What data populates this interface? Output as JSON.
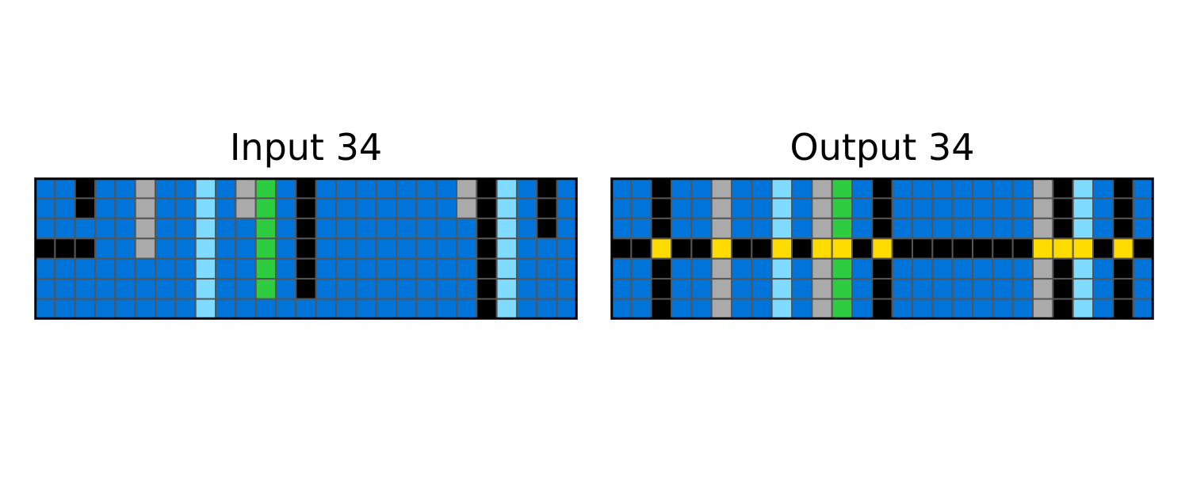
{
  "palette": {
    "0": "#000000",
    "1": "#0074D9",
    "3": "#2ECC40",
    "4": "#FFDC00",
    "5": "#AAAAAA",
    "8": "#7FDBFF"
  },
  "grid_line_color": "#555555",
  "border_color": "#000000",
  "panels": [
    {
      "title": "Input 34",
      "rows": [
        [
          1,
          1,
          0,
          1,
          1,
          5,
          1,
          1,
          8,
          1,
          5,
          3,
          1,
          0,
          1,
          1,
          1,
          1,
          1,
          1,
          1,
          5,
          0,
          8,
          1,
          0,
          1
        ],
        [
          1,
          1,
          0,
          1,
          1,
          5,
          1,
          1,
          8,
          1,
          5,
          3,
          1,
          0,
          1,
          1,
          1,
          1,
          1,
          1,
          1,
          5,
          0,
          8,
          1,
          0,
          1
        ],
        [
          1,
          1,
          1,
          1,
          1,
          5,
          1,
          1,
          8,
          1,
          1,
          3,
          1,
          0,
          1,
          1,
          1,
          1,
          1,
          1,
          1,
          1,
          0,
          8,
          1,
          0,
          1
        ],
        [
          0,
          0,
          0,
          1,
          1,
          5,
          1,
          1,
          8,
          1,
          1,
          3,
          1,
          0,
          1,
          1,
          1,
          1,
          1,
          1,
          1,
          1,
          0,
          8,
          1,
          1,
          1
        ],
        [
          1,
          1,
          1,
          1,
          1,
          1,
          1,
          1,
          8,
          1,
          1,
          3,
          1,
          0,
          1,
          1,
          1,
          1,
          1,
          1,
          1,
          1,
          0,
          8,
          1,
          1,
          1
        ],
        [
          1,
          1,
          1,
          1,
          1,
          1,
          1,
          1,
          8,
          1,
          1,
          3,
          1,
          0,
          1,
          1,
          1,
          1,
          1,
          1,
          1,
          1,
          0,
          8,
          1,
          1,
          1
        ],
        [
          1,
          1,
          1,
          1,
          1,
          1,
          1,
          1,
          8,
          1,
          1,
          1,
          1,
          1,
          1,
          1,
          1,
          1,
          1,
          1,
          1,
          1,
          0,
          8,
          1,
          1,
          1
        ]
      ]
    },
    {
      "title": "Output 34",
      "rows": [
        [
          1,
          1,
          0,
          1,
          1,
          5,
          1,
          1,
          8,
          1,
          5,
          3,
          1,
          0,
          1,
          1,
          1,
          1,
          1,
          1,
          1,
          5,
          0,
          8,
          1,
          0,
          1
        ],
        [
          1,
          1,
          0,
          1,
          1,
          5,
          1,
          1,
          8,
          1,
          5,
          3,
          1,
          0,
          1,
          1,
          1,
          1,
          1,
          1,
          1,
          5,
          0,
          8,
          1,
          0,
          1
        ],
        [
          1,
          1,
          0,
          1,
          1,
          5,
          1,
          1,
          8,
          1,
          5,
          3,
          1,
          0,
          1,
          1,
          1,
          1,
          1,
          1,
          1,
          5,
          0,
          8,
          1,
          0,
          1
        ],
        [
          0,
          0,
          4,
          0,
          0,
          4,
          0,
          0,
          4,
          0,
          4,
          4,
          0,
          4,
          0,
          0,
          0,
          0,
          0,
          0,
          0,
          4,
          4,
          4,
          0,
          4,
          0
        ],
        [
          1,
          1,
          0,
          1,
          1,
          5,
          1,
          1,
          8,
          1,
          5,
          3,
          1,
          0,
          1,
          1,
          1,
          1,
          1,
          1,
          1,
          5,
          0,
          8,
          1,
          0,
          1
        ],
        [
          1,
          1,
          0,
          1,
          1,
          5,
          1,
          1,
          8,
          1,
          5,
          3,
          1,
          0,
          1,
          1,
          1,
          1,
          1,
          1,
          1,
          5,
          0,
          8,
          1,
          0,
          1
        ],
        [
          1,
          1,
          0,
          1,
          1,
          5,
          1,
          1,
          8,
          1,
          5,
          3,
          1,
          0,
          1,
          1,
          1,
          1,
          1,
          1,
          1,
          5,
          0,
          8,
          1,
          0,
          1
        ]
      ]
    }
  ]
}
